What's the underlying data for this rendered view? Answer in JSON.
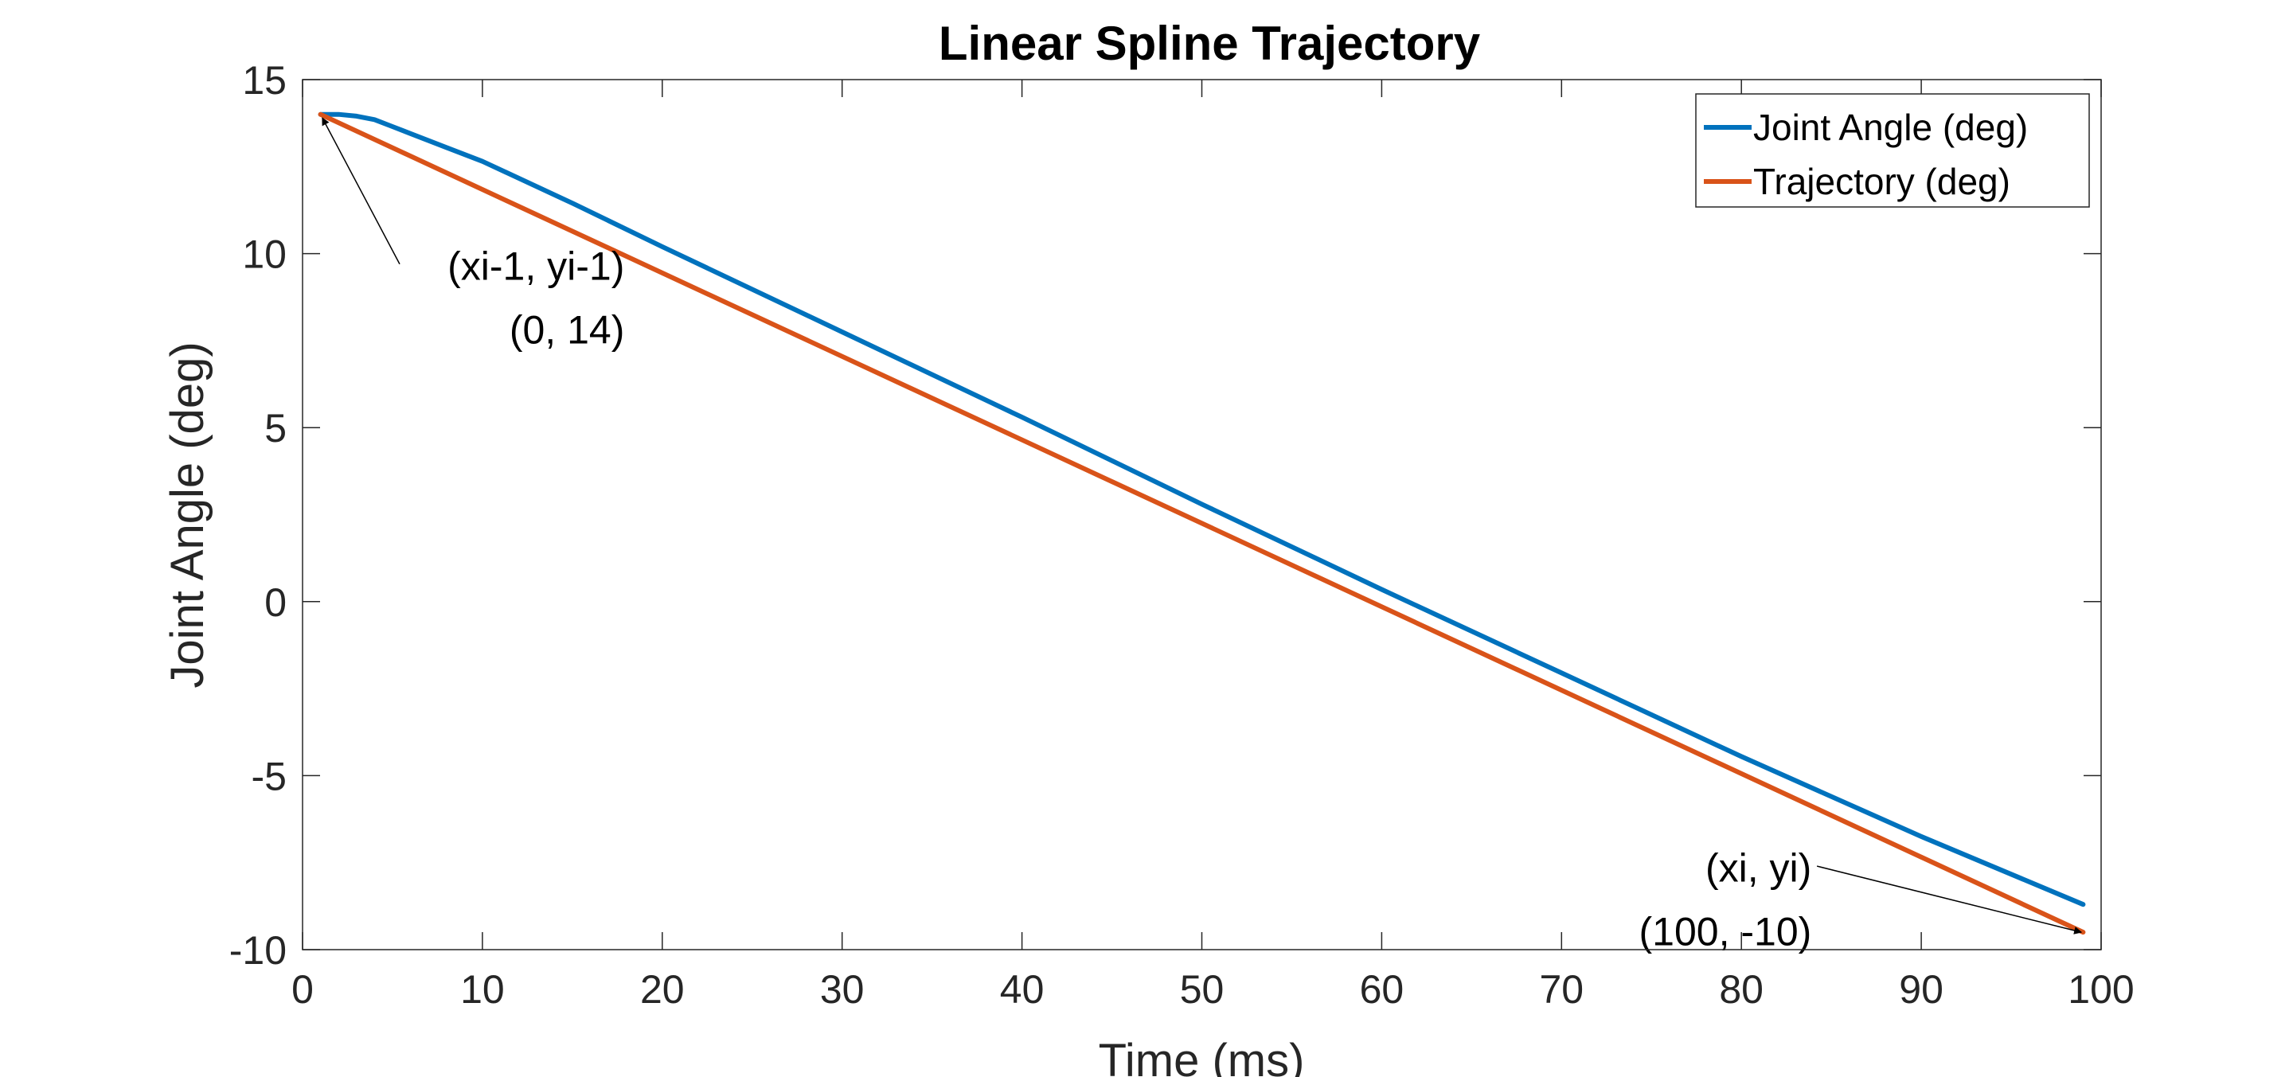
{
  "chart_data": {
    "type": "line",
    "title": "Linear Spline Trajectory",
    "xlabel": "Time (ms)",
    "ylabel": "Joint Angle (deg)",
    "xlim": [
      0,
      100
    ],
    "ylim": [
      -10,
      15
    ],
    "xticks": [
      0,
      10,
      20,
      30,
      40,
      50,
      60,
      70,
      80,
      90,
      100
    ],
    "yticks": [
      -10,
      -5,
      0,
      5,
      10,
      15
    ],
    "grid": false,
    "legend_position": "top-right",
    "series": [
      {
        "name": "Joint Angle (deg)",
        "color": "#0072BD",
        "x": [
          1,
          2,
          3,
          4,
          5,
          6,
          8,
          10,
          15,
          20,
          30,
          40,
          50,
          60,
          70,
          80,
          90,
          99
        ],
        "y": [
          14.0,
          14.0,
          13.95,
          13.85,
          13.65,
          13.45,
          13.05,
          12.65,
          11.45,
          10.2,
          7.75,
          5.3,
          2.8,
          0.35,
          -2.05,
          -4.45,
          -6.75,
          -8.7
        ]
      },
      {
        "name": "Trajectory (deg)",
        "color": "#D95319",
        "x": [
          1,
          99
        ],
        "y": [
          14.0,
          -9.5
        ]
      }
    ],
    "annotations": [
      {
        "id": "start",
        "lines": [
          "(xi-1, yi-1)",
          "(0, 14)"
        ],
        "anchor": "right",
        "text_x": 17.9,
        "text_y": 9.25,
        "arrow_from": [
          5.4,
          9.7
        ],
        "arrow_to": [
          1.1,
          13.9
        ]
      },
      {
        "id": "end",
        "lines": [
          "(xi, yi)",
          "(100, -10)"
        ],
        "anchor": "right",
        "text_x": 83.9,
        "text_y": -8.05,
        "arrow_from": [
          84.2,
          -7.6
        ],
        "arrow_to": [
          98.9,
          -9.5
        ]
      }
    ]
  }
}
